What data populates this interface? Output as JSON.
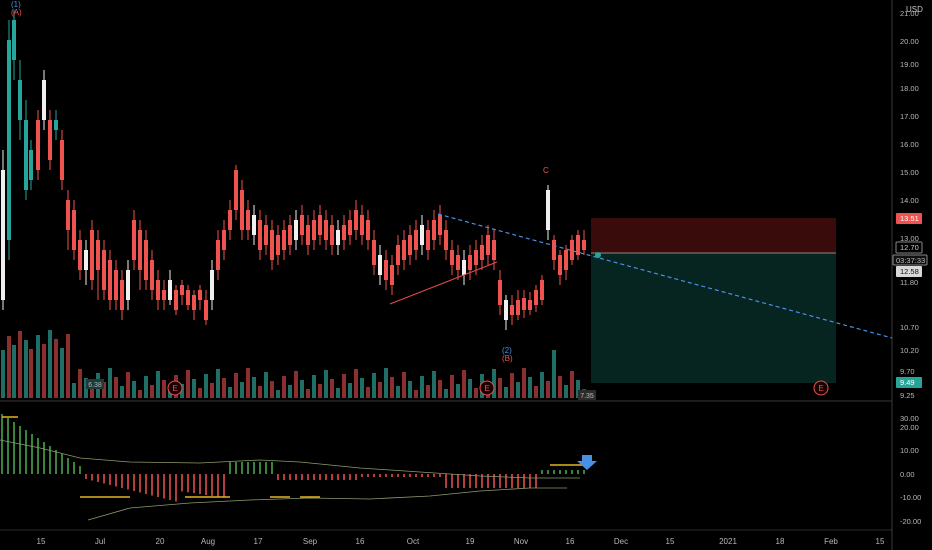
{
  "currency": "USD",
  "colors": {
    "up": "#26a69a",
    "down": "#ef5350",
    "white_candle": "#f0f0f0",
    "trendline": "#4a90e2",
    "wave_line": "#e04a4a",
    "stop_zone": "#3a0b0b",
    "target_zone": "#062420",
    "current_price": "#26a69a",
    "stop_tag": "#ef5350",
    "indicator_osc_up": "#4caf50",
    "indicator_osc_down": "#ef5350",
    "indicator_signal": "#e6b422",
    "arrow": "#4a90e2"
  },
  "price_axis": {
    "ticks": [
      "21.00",
      "20.00",
      "19.00",
      "18.00",
      "17.00",
      "16.00",
      "15.00",
      "14.00",
      "13.00",
      "11.80",
      "10.70",
      "10.20",
      "9.70",
      "9.25"
    ],
    "tags": {
      "stop": "13.51",
      "entry": "12.70",
      "countdown": "03:37:33",
      "current": "12.58",
      "target": "9.49"
    }
  },
  "indicator_axis": {
    "ticks": [
      "30.00",
      "20.00",
      "10.00",
      "0.00",
      "-10.00",
      "-20.00"
    ]
  },
  "time_axis": {
    "ticks": [
      "15",
      "Jul",
      "20",
      "Aug",
      "17",
      "Sep",
      "16",
      "Oct",
      "19",
      "Nov",
      "16",
      "Dec",
      "15",
      "2021",
      "18",
      "Feb",
      "15"
    ]
  },
  "wave_labels": {
    "top_1": "(1)",
    "top_A": "(A)",
    "bottom_2": "(2)",
    "bottom_B": "(B)",
    "c": "C"
  },
  "earnings_marker": "E",
  "volume_labels": {
    "left": "6.38",
    "right": "7.35"
  }
}
